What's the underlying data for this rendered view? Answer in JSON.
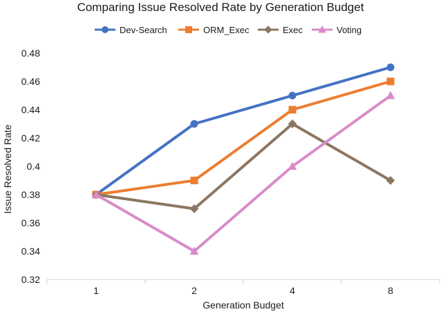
{
  "chart_data": {
    "type": "line",
    "title": "Comparing Issue Resolved Rate by Generation Budget",
    "xlabel": "Generation Budget",
    "ylabel": "Issue Resolved Rate",
    "categories": [
      "1",
      "2",
      "4",
      "8"
    ],
    "ylim": [
      0.32,
      0.48
    ],
    "yticks": [
      "0.32",
      "0.34",
      "0.36",
      "0.38",
      "0.4",
      "0.42",
      "0.44",
      "0.46",
      "0.48"
    ],
    "legend_position": "top",
    "grid": false,
    "series": [
      {
        "name": "Dev-Search",
        "values": [
          0.38,
          0.43,
          0.45,
          0.47
        ],
        "color": "#4472C4",
        "marker": "circle"
      },
      {
        "name": "ORM_Exec",
        "values": [
          0.38,
          0.39,
          0.44,
          0.46
        ],
        "color": "#ED7D31",
        "marker": "square"
      },
      {
        "name": "Exec",
        "values": [
          0.38,
          0.37,
          0.43,
          0.39
        ],
        "color": "#8B7661",
        "marker": "diamond"
      },
      {
        "name": "Voting",
        "values": [
          0.38,
          0.34,
          0.4,
          0.45
        ],
        "color": "#D98BC9",
        "marker": "triangle"
      }
    ]
  }
}
